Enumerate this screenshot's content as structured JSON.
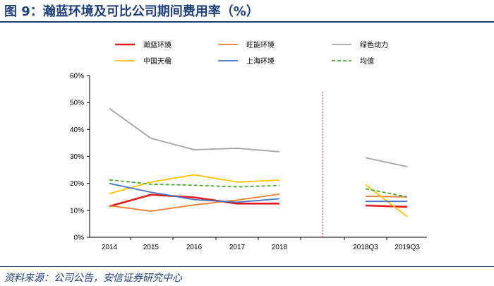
{
  "page": {
    "title": "图 9：瀚蓝环境及可比公司期间费用率（%）",
    "source": "资料来源：公司公告，安信证券研究中心"
  },
  "chart_data": {
    "type": "line",
    "title": "",
    "xlabel": "",
    "ylabel": "",
    "ylim": [
      0,
      0.6
    ],
    "y_ticks": [
      "0%",
      "10%",
      "20%",
      "30%",
      "40%",
      "50%",
      "60%"
    ],
    "categories": [
      "2014",
      "2015",
      "2016",
      "2017",
      "2018",
      "2018Q3",
      "2019Q3"
    ],
    "groups": [
      [
        0,
        1,
        2,
        3,
        4
      ],
      [
        5,
        6
      ]
    ],
    "series": [
      {
        "name": "瀚蓝环境",
        "color": "#e41a1c",
        "dashed": false,
        "bold": true,
        "values": [
          0.115,
          0.158,
          0.148,
          0.125,
          0.125,
          0.118,
          0.113
        ]
      },
      {
        "name": "旺能环境",
        "color": "#ed7d31",
        "dashed": false,
        "bold": false,
        "values": [
          0.117,
          0.097,
          0.12,
          0.138,
          0.16,
          0.152,
          0.15
        ]
      },
      {
        "name": "绿色动力",
        "color": "#a5a5a5",
        "dashed": false,
        "bold": false,
        "values": [
          0.478,
          0.367,
          0.325,
          0.33,
          0.317,
          0.295,
          0.262
        ]
      },
      {
        "name": "中国天楹",
        "color": "#ffc000",
        "dashed": false,
        "bold": false,
        "values": [
          0.162,
          0.205,
          0.232,
          0.205,
          0.212,
          0.195,
          0.077
        ]
      },
      {
        "name": "上海环境",
        "color": "#4472c4",
        "dashed": false,
        "bold": false,
        "values": [
          0.2,
          0.167,
          0.14,
          0.13,
          0.143,
          0.133,
          0.133
        ]
      },
      {
        "name": "均值",
        "color": "#4ea72e",
        "dashed": true,
        "bold": false,
        "values": [
          0.213,
          0.197,
          0.193,
          0.187,
          0.192,
          0.18,
          0.15
        ]
      }
    ],
    "separator": {
      "style": "dashed",
      "color": "#e41a1c"
    },
    "legend_position": "top",
    "grid": false
  }
}
